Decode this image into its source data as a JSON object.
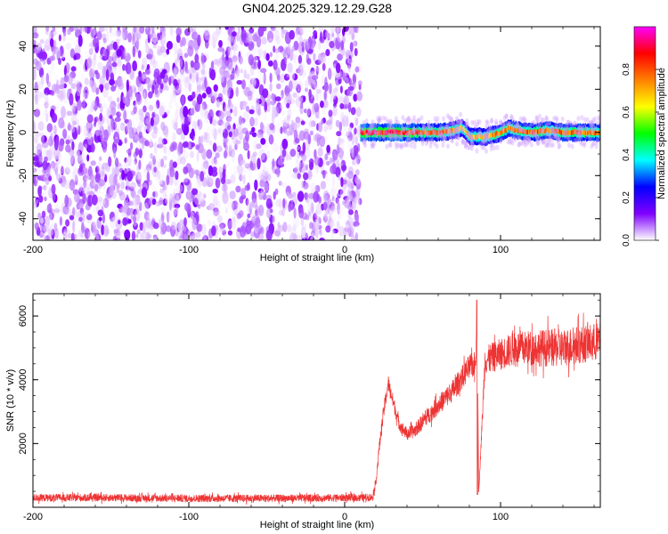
{
  "title": "GN04.2025.329.12.29.G28",
  "chart_data": [
    {
      "type": "heatmap",
      "xlabel": "Height of straight line (km)",
      "ylabel": "Frequency (Hz)",
      "xlim": [
        -200,
        164
      ],
      "ylim": [
        -50,
        49
      ],
      "xticks": [
        -200,
        -100,
        0,
        100
      ],
      "yticks": [
        -40,
        -20,
        0,
        20,
        40
      ],
      "colorbar": {
        "label": "Normalized spectral amplitude",
        "range": [
          0,
          1
        ],
        "ticks": [
          "0.0",
          "0.2",
          "0.4",
          "0.6",
          "0.8"
        ],
        "colors": [
          "#ffffff",
          "#8000ff",
          "#0000ff",
          "#00ffff",
          "#00ff00",
          "#ffff00",
          "#ff8000",
          "#ff0000",
          "#ff00ff"
        ]
      },
      "noise_region": {
        "x_range": [
          -200,
          10
        ],
        "freq_range": [
          -50,
          49
        ],
        "amplitude_range": [
          0.0,
          0.2
        ]
      },
      "signal_track": {
        "x": [
          10,
          20,
          30,
          40,
          50,
          60,
          70,
          75,
          80,
          90,
          100,
          105,
          110,
          120,
          130,
          140,
          150,
          164
        ],
        "freq": [
          0,
          0,
          0,
          0,
          0,
          0,
          1,
          2,
          -2,
          -2,
          0,
          2,
          1,
          0,
          1,
          0,
          0,
          0
        ],
        "amplitude": [
          0.95,
          0.95,
          0.95,
          0.9,
          0.85,
          0.85,
          0.8,
          0.75,
          0.75,
          0.8,
          0.85,
          0.8,
          0.85,
          0.85,
          0.85,
          0.85,
          0.85,
          0.85
        ]
      }
    },
    {
      "type": "line",
      "xlabel": "Height of straight line (km)",
      "ylabel": "SNR (10 * v/v)",
      "xlim": [
        -200,
        164
      ],
      "ylim": [
        0,
        6700
      ],
      "xticks": [
        -200,
        -100,
        0,
        100
      ],
      "yticks": [
        2000,
        4000,
        6000
      ],
      "series": [
        {
          "color": "#ee3333",
          "x": [
            -200,
            -150,
            -100,
            -50,
            0,
            10,
            18,
            20,
            22,
            25,
            28,
            30,
            35,
            40,
            45,
            50,
            60,
            70,
            80,
            84,
            85,
            86,
            90,
            100,
            110,
            120,
            130,
            140,
            150,
            164
          ],
          "y": [
            300,
            300,
            280,
            280,
            300,
            300,
            320,
            800,
            1800,
            3000,
            3900,
            3500,
            2600,
            2300,
            2400,
            2700,
            3200,
            3700,
            4400,
            4500,
            6500,
            400,
            4600,
            4800,
            5000,
            5000,
            5000,
            5000,
            5100,
            5200
          ],
          "noise_amplitude": [
            120,
            120,
            120,
            120,
            120,
            120,
            120,
            150,
            200,
            250,
            250,
            250,
            200,
            200,
            220,
            250,
            300,
            350,
            400,
            400,
            0,
            0,
            450,
            500,
            550,
            550,
            600,
            600,
            600,
            600
          ]
        }
      ]
    }
  ]
}
